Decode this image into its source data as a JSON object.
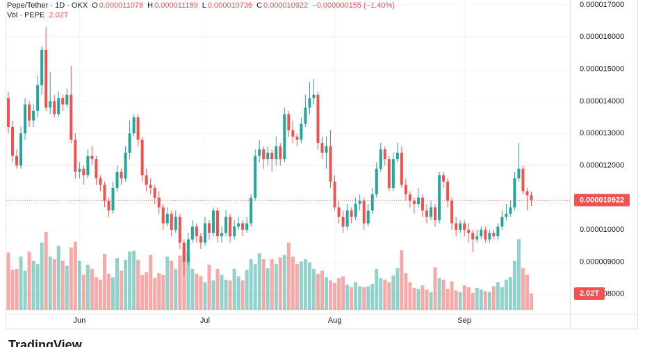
{
  "chart_data": {
    "type": "candlestick",
    "header": {
      "symbol": "Pepe/Tether · 1D · OKX",
      "o_label": "O",
      "open": "0.000011078",
      "h_label": "H",
      "high": "0.000011189",
      "l_label": "L",
      "low": "0.000010736",
      "c_label": "C",
      "close": "0.000010922",
      "change": "−0.000000155 (−1.40%)",
      "vol_label": "Vol · PEPE",
      "vol": "2.02T"
    },
    "logo": "TradingView",
    "up_color": "#26a69a",
    "down_color": "#ef5350",
    "grid": true,
    "ylim": [
      7.39e-06,
      1.715e-05
    ],
    "yticks": [
      {
        "value": 1.7e-05,
        "label": "0.000017000"
      },
      {
        "value": 1.6e-05,
        "label": "0.000016000"
      },
      {
        "value": 1.5e-05,
        "label": "0.000015000"
      },
      {
        "value": 1.4e-05,
        "label": "0.000014000"
      },
      {
        "value": 1.3e-05,
        "label": "0.000013000"
      },
      {
        "value": 1.2e-05,
        "label": "0.000012000"
      },
      {
        "value": 1.1e-05,
        "label": "0.000011000"
      },
      {
        "value": 1e-05,
        "label": "0.000010000"
      },
      {
        "value": 9e-06,
        "label": "0.000009000"
      },
      {
        "value": 8e-06,
        "label": "0.000008000"
      }
    ],
    "volume_lim": [
      0,
      38
    ],
    "categories": [
      null,
      null,
      null,
      null,
      null,
      null,
      null,
      null,
      null,
      null,
      null,
      null,
      null,
      null,
      null,
      null,
      null,
      "Jun",
      null,
      null,
      null,
      null,
      null,
      null,
      null,
      null,
      null,
      null,
      null,
      null,
      null,
      null,
      null,
      null,
      null,
      null,
      null,
      null,
      null,
      null,
      null,
      null,
      null,
      null,
      null,
      null,
      null,
      "Jul",
      null,
      null,
      null,
      null,
      null,
      null,
      null,
      null,
      null,
      null,
      null,
      null,
      null,
      null,
      null,
      null,
      null,
      null,
      null,
      null,
      null,
      null,
      null,
      null,
      null,
      null,
      null,
      null,
      null,
      null,
      "Aug",
      null,
      null,
      null,
      null,
      null,
      null,
      null,
      null,
      null,
      null,
      null,
      null,
      null,
      null,
      null,
      null,
      null,
      null,
      null,
      null,
      null,
      null,
      null,
      null,
      null,
      null,
      null,
      null,
      null,
      null,
      "Sep",
      null,
      null,
      null,
      null,
      null,
      null,
      null,
      null,
      null,
      null,
      null,
      null,
      null,
      null,
      null,
      null
    ],
    "ohlc": [
      [
        1.41e-05,
        1.43e-05,
        1.3e-05,
        1.32e-05
      ],
      [
        1.32e-05,
        1.34e-05,
        1.21e-05,
        1.23e-05
      ],
      [
        1.23e-05,
        1.25e-05,
        1.19e-05,
        1.2e-05
      ],
      [
        1.2e-05,
        1.32e-05,
        1.19e-05,
        1.3e-05
      ],
      [
        1.3e-05,
        1.41e-05,
        1.28e-05,
        1.39e-05
      ],
      [
        1.39e-05,
        1.4e-05,
        1.32e-05,
        1.34e-05
      ],
      [
        1.34e-05,
        1.39e-05,
        1.32e-05,
        1.37e-05
      ],
      [
        1.37e-05,
        1.48e-05,
        1.35e-05,
        1.45e-05
      ],
      [
        1.45e-05,
        1.57e-05,
        1.42e-05,
        1.56e-05
      ],
      [
        1.56e-05,
        1.63e-05,
        1.37e-05,
        1.38e-05
      ],
      [
        1.38e-05,
        1.49e-05,
        1.36e-05,
        1.4e-05
      ],
      [
        1.4e-05,
        1.42e-05,
        1.35e-05,
        1.36e-05
      ],
      [
        1.36e-05,
        1.43e-05,
        1.35e-05,
        1.41e-05
      ],
      [
        1.41e-05,
        1.42e-05,
        1.37e-05,
        1.39e-05
      ],
      [
        1.39e-05,
        1.44e-05,
        1.38e-05,
        1.42e-05
      ],
      [
        1.42e-05,
        1.51e-05,
        1.27e-05,
        1.28e-05
      ],
      [
        1.28e-05,
        1.3e-05,
        1.16e-05,
        1.18e-05
      ],
      [
        1.18e-05,
        1.21e-05,
        1.16e-05,
        1.19e-05
      ],
      [
        1.19e-05,
        1.2e-05,
        1.14e-05,
        1.17e-05
      ],
      [
        1.17e-05,
        1.25e-05,
        1.16e-05,
        1.23e-05
      ],
      [
        1.23e-05,
        1.26e-05,
        1.2e-05,
        1.22e-05
      ],
      [
        1.22e-05,
        1.23e-05,
        1.14e-05,
        1.16e-05
      ],
      [
        1.16e-05,
        1.17e-05,
        1.12e-05,
        1.14e-05
      ],
      [
        1.14e-05,
        1.15e-05,
        1.07e-05,
        1.09e-05
      ],
      [
        1.09e-05,
        1.1e-05,
        1.04e-05,
        1.06e-05
      ],
      [
        1.06e-05,
        1.15e-05,
        1.05e-05,
        1.13e-05
      ],
      [
        1.13e-05,
        1.2e-05,
        1.12e-05,
        1.18e-05
      ],
      [
        1.18e-05,
        1.19e-05,
        1.14e-05,
        1.16e-05
      ],
      [
        1.16e-05,
        1.26e-05,
        1.15e-05,
        1.24e-05
      ],
      [
        1.24e-05,
        1.34e-05,
        1.22e-05,
        1.3e-05
      ],
      [
        1.3e-05,
        1.36e-05,
        1.29e-05,
        1.35e-05
      ],
      [
        1.35e-05,
        1.36e-05,
        1.26e-05,
        1.28e-05
      ],
      [
        1.28e-05,
        1.29e-05,
        1.15e-05,
        1.17e-05
      ],
      [
        1.17e-05,
        1.19e-05,
        1.12e-05,
        1.14e-05
      ],
      [
        1.14e-05,
        1.16e-05,
        1.11e-05,
        1.13e-05
      ],
      [
        1.13e-05,
        1.14e-05,
        1.08e-05,
        1.1e-05
      ],
      [
        1.1e-05,
        1.12e-05,
        1.05e-05,
        1.07e-05
      ],
      [
        1.07e-05,
        1.08e-05,
        1e-05,
        1.02e-05
      ],
      [
        1.02e-05,
        1.07e-05,
        1.01e-05,
        1.05e-05
      ],
      [
        1.05e-05,
        1.06e-05,
        9.8e-06,
        1e-05
      ],
      [
        1e-05,
        1.06e-05,
        9.9e-06,
        1.04e-05
      ],
      [
        1.04e-05,
        1.05e-05,
        9.4e-06,
        9.6e-06
      ],
      [
        9.6e-06,
        9.7e-06,
        8.6e-06,
        9e-06
      ],
      [
        9e-06,
        9.9e-06,
        8.9e-06,
        9.7e-06
      ],
      [
        9.7e-06,
        1.03e-05,
        9.6e-06,
        1.01e-05
      ],
      [
        1.01e-05,
        1.02e-05,
        9.6e-06,
        9.8e-06
      ],
      [
        9.8e-06,
        9.9e-06,
        9.4e-06,
        9.6e-06
      ],
      [
        9.6e-06,
        1.04e-05,
        9.5e-06,
        1.02e-05
      ],
      [
        1.02e-05,
        1.03e-05,
        9.7e-06,
        9.9e-06
      ],
      [
        9.9e-06,
        1.07e-05,
        9.8e-06,
        1.06e-05
      ],
      [
        1.06e-05,
        1.07e-05,
        9.6e-06,
        9.8e-06
      ],
      [
        9.8e-06,
        1.01e-05,
        9.6e-06,
        9.9e-06
      ],
      [
        9.9e-06,
        1.06e-05,
        9.8e-06,
        1.04e-05
      ],
      [
        1.04e-05,
        1.05e-05,
        9.6e-06,
        9.8e-06
      ],
      [
        9.8e-06,
        1.03e-05,
        9.7e-06,
        1.01e-05
      ],
      [
        1.01e-05,
        1.04e-05,
        1e-05,
        1.02e-05
      ],
      [
        1.02e-05,
        1.03e-05,
        9.8e-06,
        1e-05
      ],
      [
        1e-05,
        1.04e-05,
        9.9e-06,
        1.02e-05
      ],
      [
        1.02e-05,
        1.11e-05,
        1.01e-05,
        1.1e-05
      ],
      [
        1.1e-05,
        1.25e-05,
        1.09e-05,
        1.23e-05
      ],
      [
        1.23e-05,
        1.28e-05,
        1.21e-05,
        1.25e-05
      ],
      [
        1.25e-05,
        1.26e-05,
        1.19e-05,
        1.22e-05
      ],
      [
        1.22e-05,
        1.26e-05,
        1.2e-05,
        1.24e-05
      ],
      [
        1.24e-05,
        1.25e-05,
        1.18e-05,
        1.22e-05
      ],
      [
        1.22e-05,
        1.29e-05,
        1.2e-05,
        1.26e-05
      ],
      [
        1.26e-05,
        1.27e-05,
        1.2e-05,
        1.22e-05
      ],
      [
        1.22e-05,
        1.38e-05,
        1.21e-05,
        1.36e-05
      ],
      [
        1.36e-05,
        1.37e-05,
        1.29e-05,
        1.31e-05
      ],
      [
        1.31e-05,
        1.34e-05,
        1.27e-05,
        1.29e-05
      ],
      [
        1.29e-05,
        1.3e-05,
        1.26e-05,
        1.28e-05
      ],
      [
        1.28e-05,
        1.35e-05,
        1.27e-05,
        1.33e-05
      ],
      [
        1.33e-05,
        1.42e-05,
        1.32e-05,
        1.38e-05
      ],
      [
        1.38e-05,
        1.46e-05,
        1.36e-05,
        1.41e-05
      ],
      [
        1.41e-05,
        1.47e-05,
        1.39e-05,
        1.42e-05
      ],
      [
        1.42e-05,
        1.43e-05,
        1.25e-05,
        1.27e-05
      ],
      [
        1.27e-05,
        1.29e-05,
        1.22e-05,
        1.24e-05
      ],
      [
        1.24e-05,
        1.29e-05,
        1.19e-05,
        1.26e-05
      ],
      [
        1.26e-05,
        1.31e-05,
        1.13e-05,
        1.15e-05
      ],
      [
        1.15e-05,
        1.17e-05,
        1.06e-05,
        1.07e-05
      ],
      [
        1.07e-05,
        1.09e-05,
        1.02e-05,
        1.04e-05
      ],
      [
        1.04e-05,
        1.06e-05,
        9.9e-06,
        1.01e-05
      ],
      [
        1.01e-05,
        1.08e-05,
        1e-05,
        1.06e-05
      ],
      [
        1.06e-05,
        1.07e-05,
        1.02e-05,
        1.04e-05
      ],
      [
        1.04e-05,
        1.1e-05,
        1.03e-05,
        1.08e-05
      ],
      [
        1.08e-05,
        1.11e-05,
        1.06e-05,
        1.09e-05
      ],
      [
        1.09e-05,
        1.1e-05,
        1e-05,
        1.02e-05
      ],
      [
        1.02e-05,
        1.08e-05,
        1.01e-05,
        1.06e-05
      ],
      [
        1.06e-05,
        1.13e-05,
        1.05e-05,
        1.11e-05
      ],
      [
        1.11e-05,
        1.21e-05,
        1.1e-05,
        1.19e-05
      ],
      [
        1.19e-05,
        1.27e-05,
        1.18e-05,
        1.25e-05
      ],
      [
        1.25e-05,
        1.26e-05,
        1.2e-05,
        1.22e-05
      ],
      [
        1.22e-05,
        1.23e-05,
        1.12e-05,
        1.13e-05
      ],
      [
        1.13e-05,
        1.24e-05,
        1.12e-05,
        1.22e-05
      ],
      [
        1.22e-05,
        1.27e-05,
        1.21e-05,
        1.24e-05
      ],
      [
        1.24e-05,
        1.26e-05,
        1.13e-05,
        1.14e-05
      ],
      [
        1.14e-05,
        1.16e-05,
        1.09e-05,
        1.11e-05
      ],
      [
        1.11e-05,
        1.12e-05,
        1.07e-05,
        1.09e-05
      ],
      [
        1.09e-05,
        1.1e-05,
        1.05e-05,
        1.08e-05
      ],
      [
        1.08e-05,
        1.13e-05,
        1.07e-05,
        1.1e-05
      ],
      [
        1.1e-05,
        1.11e-05,
        1.04e-05,
        1.06e-05
      ],
      [
        1.06e-05,
        1.08e-05,
        1.02e-05,
        1.04e-05
      ],
      [
        1.04e-05,
        1.09e-05,
        1.03e-05,
        1.07e-05
      ],
      [
        1.07e-05,
        1.08e-05,
        1.01e-05,
        1.03e-05
      ],
      [
        1.03e-05,
        1.18e-05,
        1.02e-05,
        1.17e-05
      ],
      [
        1.17e-05,
        1.18e-05,
        1.13e-05,
        1.15e-05
      ],
      [
        1.15e-05,
        1.16e-05,
        1.07e-05,
        1.09e-05
      ],
      [
        1.09e-05,
        1.1e-05,
        1e-05,
        1.02e-05
      ],
      [
        1.02e-05,
        1.04e-05,
        9.8e-06,
        1e-05
      ],
      [
        1e-05,
        1.03e-05,
        9.9e-06,
        1.02e-05
      ],
      [
        1.02e-05,
        1.03e-05,
        9.8e-06,
        1e-05
      ],
      [
        1e-05,
        1.02e-05,
        9.6e-06,
        9.9e-06
      ],
      [
        9.9e-06,
        1e-05,
        9.3e-06,
        9.7e-06
      ],
      [
        9.7e-06,
        1e-05,
        9.6e-06,
        9.8e-06
      ],
      [
        9.8e-06,
        1.01e-05,
        9.7e-06,
        1e-05
      ],
      [
        1e-05,
        1.01e-05,
        9.6e-06,
        9.7e-06
      ],
      [
        9.7e-06,
        1e-05,
        9.6e-06,
        9.9e-06
      ],
      [
        9.9e-06,
        1e-05,
        9.7e-06,
        9.8e-06
      ],
      [
        9.8e-06,
        1.02e-05,
        9.7e-06,
        1.01e-05
      ],
      [
        1.01e-05,
        1.06e-05,
        1e-05,
        1.04e-05
      ],
      [
        1.04e-05,
        1.08e-05,
        1.03e-05,
        1.05e-05
      ],
      [
        1.05e-05,
        1.09e-05,
        1.04e-05,
        1.07e-05
      ],
      [
        1.07e-05,
        1.18e-05,
        1.06e-05,
        1.16e-05
      ],
      [
        1.16e-05,
        1.27e-05,
        1.15e-05,
        1.19e-05
      ],
      [
        1.19e-05,
        1.2e-05,
        1.11e-05,
        1.12e-05
      ],
      [
        1.12e-05,
        1.13e-05,
        1.06e-05,
        1.1078e-05
      ],
      [
        1.1078e-05,
        1.1189e-05,
        1.0736e-05,
        1.0922e-05
      ]
    ],
    "volume": [
      7.0,
      4.9,
      5.0,
      6.5,
      4.8,
      7.1,
      6.0,
      5.6,
      8.2,
      9.5,
      6.5,
      6.2,
      7.8,
      6.0,
      5.4,
      7.6,
      8.3,
      6.0,
      4.3,
      5.5,
      5.0,
      4.0,
      3.7,
      6.8,
      4.4,
      4.0,
      6.3,
      4.8,
      6.1,
      7.1,
      7.2,
      6.1,
      4.3,
      4.6,
      6.7,
      3.9,
      4.5,
      4.3,
      6.5,
      6.0,
      5.0,
      6.6,
      8.0,
      6.9,
      5.0,
      4.4,
      4.1,
      3.4,
      5.5,
      3.6,
      5.0,
      4.3,
      3.7,
      3.6,
      5.0,
      4.1,
      3.6,
      4.9,
      6.2,
      5.6,
      6.9,
      6.2,
      5.1,
      6.2,
      5.6,
      6.4,
      6.7,
      8.2,
      6.5,
      5.6,
      5.9,
      6.2,
      5.8,
      5.0,
      4.4,
      4.8,
      4.0,
      3.6,
      3.3,
      3.9,
      4.1,
      3.1,
      2.8,
      3.4,
      2.9,
      2.8,
      2.9,
      3.2,
      5.0,
      3.9,
      3.7,
      3.4,
      4.2,
      5.1,
      7.3,
      4.5,
      3.4,
      2.7,
      2.6,
      3.0,
      2.5,
      2.2,
      5.2,
      3.9,
      3.7,
      2.6,
      3.5,
      2.4,
      2.2,
      3.0,
      2.8,
      2.1,
      2.7,
      2.5,
      2.3,
      2.2,
      2.9,
      3.4,
      2.8,
      3.7,
      4.0,
      6.0,
      8.6,
      5.1,
      4.3,
      2.02
    ]
  }
}
